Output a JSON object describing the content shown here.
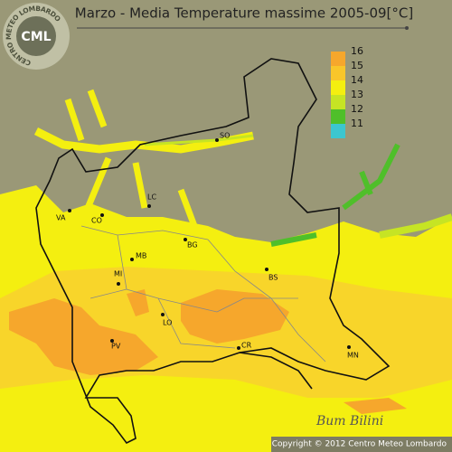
{
  "header": {
    "title": "Marzo - Media Temperature massime 2005-09[°C]"
  },
  "logo": {
    "ring_text": "CENTRO METEO LOMBARDO",
    "abbr": "CML"
  },
  "legend": {
    "items": [
      {
        "label": "16",
        "color": "#f6a72c"
      },
      {
        "label": "15",
        "color": "#f8c62a"
      },
      {
        "label": "14",
        "color": "#f4ef10"
      },
      {
        "label": "13",
        "color": "#c6e424"
      },
      {
        "label": "12",
        "color": "#4fbf2a"
      },
      {
        "label": "11",
        "color": "#3cc6cf"
      }
    ]
  },
  "cities": [
    {
      "label": "SO"
    },
    {
      "label": "VA"
    },
    {
      "label": "CO"
    },
    {
      "label": "LC"
    },
    {
      "label": "BG"
    },
    {
      "label": "MB"
    },
    {
      "label": "MI"
    },
    {
      "label": "BS"
    },
    {
      "label": "LO"
    },
    {
      "label": "PV"
    },
    {
      "label": "CR"
    },
    {
      "label": "MN"
    }
  ],
  "footer": {
    "copyright": "Copyright © 2012 Centro Meteo Lombardo"
  }
}
